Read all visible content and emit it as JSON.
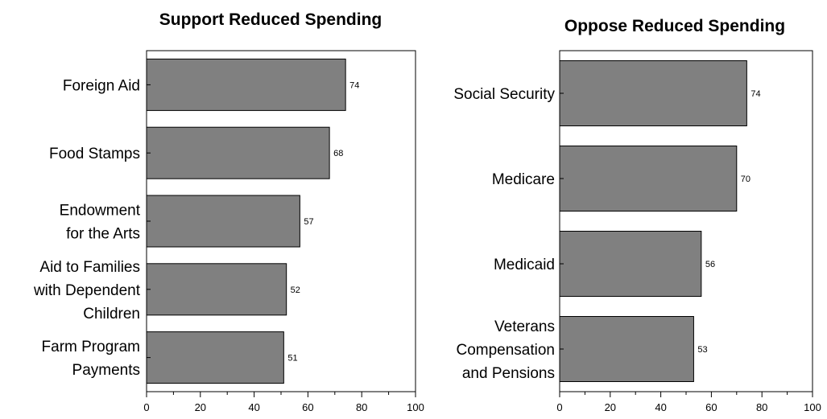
{
  "chart_data": [
    {
      "type": "bar",
      "orientation": "horizontal",
      "title": "Support Reduced Spending",
      "categories": [
        [
          "Foreign Aid"
        ],
        [
          "Food Stamps"
        ],
        [
          "Endowment",
          "for the Arts"
        ],
        [
          "Aid to Families",
          "with Dependent",
          "Children"
        ],
        [
          "Farm Program",
          "Payments"
        ]
      ],
      "values": [
        74,
        68,
        57,
        52,
        51
      ],
      "data_labels": [
        "74",
        "68",
        "57",
        "52",
        "51"
      ],
      "xlim": [
        0,
        100
      ],
      "x_ticks": [
        "0",
        "20",
        "40",
        "60",
        "80",
        "100"
      ],
      "grid": false,
      "bar_color": "#808080"
    },
    {
      "type": "bar",
      "orientation": "horizontal",
      "title": "Oppose Reduced Spending",
      "categories": [
        [
          "Social Security"
        ],
        [
          "Medicare"
        ],
        [
          "Medicaid"
        ],
        [
          "Veterans",
          "Compensation",
          "and Pensions"
        ]
      ],
      "values": [
        74,
        70,
        56,
        53
      ],
      "data_labels": [
        "74",
        "70",
        "56",
        "53"
      ],
      "xlim": [
        0,
        100
      ],
      "x_ticks": [
        "0",
        "20",
        "40",
        "60",
        "80",
        "100"
      ],
      "grid": false,
      "bar_color": "#808080"
    }
  ]
}
